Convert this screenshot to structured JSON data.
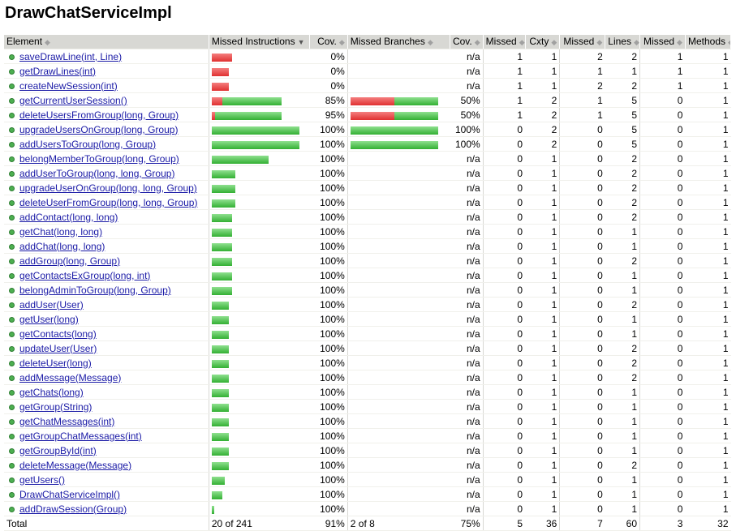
{
  "title": "DrawChatServiceImpl",
  "headers": {
    "element": "Element",
    "missed_instructions": "Missed Instructions",
    "cov1": "Cov.",
    "missed_branches": "Missed Branches",
    "cov2": "Cov.",
    "missed_cxty": "Missed",
    "cxty": "Cxty",
    "missed_lines": "Missed",
    "lines": "Lines",
    "missed_methods": "Missed",
    "methods": "Methods"
  },
  "rows": [
    {
      "name": "saveDrawLine(int, Line)",
      "instr_missed_frac": 1.0,
      "instr_total_frac": 0.23,
      "instr_cov": "0%",
      "br_missed_frac": null,
      "br_total_frac": 0,
      "br_cov": "n/a",
      "cxty_missed": "1",
      "cxty": "1",
      "lines_missed": "2",
      "lines": "2",
      "meth_missed": "1",
      "meth": "1"
    },
    {
      "name": "getDrawLines(int)",
      "instr_missed_frac": 1.0,
      "instr_total_frac": 0.19,
      "instr_cov": "0%",
      "br_missed_frac": null,
      "br_total_frac": 0,
      "br_cov": "n/a",
      "cxty_missed": "1",
      "cxty": "1",
      "lines_missed": "1",
      "lines": "1",
      "meth_missed": "1",
      "meth": "1"
    },
    {
      "name": "createNewSession(int)",
      "instr_missed_frac": 1.0,
      "instr_total_frac": 0.19,
      "instr_cov": "0%",
      "br_missed_frac": null,
      "br_total_frac": 0,
      "br_cov": "n/a",
      "cxty_missed": "1",
      "cxty": "1",
      "lines_missed": "2",
      "lines": "2",
      "meth_missed": "1",
      "meth": "1"
    },
    {
      "name": "getCurrentUserSession()",
      "instr_missed_frac": 0.15,
      "instr_total_frac": 0.8,
      "instr_cov": "85%",
      "br_missed_frac": 0.5,
      "br_total_frac": 1.0,
      "br_cov": "50%",
      "cxty_missed": "1",
      "cxty": "2",
      "lines_missed": "1",
      "lines": "5",
      "meth_missed": "0",
      "meth": "1"
    },
    {
      "name": "deleteUsersFromGroup(long, Group)",
      "instr_missed_frac": 0.05,
      "instr_total_frac": 0.8,
      "instr_cov": "95%",
      "br_missed_frac": 0.5,
      "br_total_frac": 1.0,
      "br_cov": "50%",
      "cxty_missed": "1",
      "cxty": "2",
      "lines_missed": "1",
      "lines": "5",
      "meth_missed": "0",
      "meth": "1"
    },
    {
      "name": "upgradeUsersOnGroup(long, Group)",
      "instr_missed_frac": 0,
      "instr_total_frac": 1.0,
      "instr_cov": "100%",
      "br_missed_frac": 0,
      "br_total_frac": 1.0,
      "br_cov": "100%",
      "cxty_missed": "0",
      "cxty": "2",
      "lines_missed": "0",
      "lines": "5",
      "meth_missed": "0",
      "meth": "1"
    },
    {
      "name": "addUsersToGroup(long, Group)",
      "instr_missed_frac": 0,
      "instr_total_frac": 1.0,
      "instr_cov": "100%",
      "br_missed_frac": 0,
      "br_total_frac": 1.0,
      "br_cov": "100%",
      "cxty_missed": "0",
      "cxty": "2",
      "lines_missed": "0",
      "lines": "5",
      "meth_missed": "0",
      "meth": "1"
    },
    {
      "name": "belongMemberToGroup(long, Group)",
      "instr_missed_frac": 0,
      "instr_total_frac": 0.65,
      "instr_cov": "100%",
      "br_missed_frac": null,
      "br_total_frac": 0,
      "br_cov": "n/a",
      "cxty_missed": "0",
      "cxty": "1",
      "lines_missed": "0",
      "lines": "2",
      "meth_missed": "0",
      "meth": "1"
    },
    {
      "name": "addUserToGroup(long, long, Group)",
      "instr_missed_frac": 0,
      "instr_total_frac": 0.27,
      "instr_cov": "100%",
      "br_missed_frac": null,
      "br_total_frac": 0,
      "br_cov": "n/a",
      "cxty_missed": "0",
      "cxty": "1",
      "lines_missed": "0",
      "lines": "2",
      "meth_missed": "0",
      "meth": "1"
    },
    {
      "name": "upgradeUserOnGroup(long, long, Group)",
      "instr_missed_frac": 0,
      "instr_total_frac": 0.27,
      "instr_cov": "100%",
      "br_missed_frac": null,
      "br_total_frac": 0,
      "br_cov": "n/a",
      "cxty_missed": "0",
      "cxty": "1",
      "lines_missed": "0",
      "lines": "2",
      "meth_missed": "0",
      "meth": "1"
    },
    {
      "name": "deleteUserFromGroup(long, long, Group)",
      "instr_missed_frac": 0,
      "instr_total_frac": 0.27,
      "instr_cov": "100%",
      "br_missed_frac": null,
      "br_total_frac": 0,
      "br_cov": "n/a",
      "cxty_missed": "0",
      "cxty": "1",
      "lines_missed": "0",
      "lines": "2",
      "meth_missed": "0",
      "meth": "1"
    },
    {
      "name": "addContact(long, long)",
      "instr_missed_frac": 0,
      "instr_total_frac": 0.23,
      "instr_cov": "100%",
      "br_missed_frac": null,
      "br_total_frac": 0,
      "br_cov": "n/a",
      "cxty_missed": "0",
      "cxty": "1",
      "lines_missed": "0",
      "lines": "2",
      "meth_missed": "0",
      "meth": "1"
    },
    {
      "name": "getChat(long, long)",
      "instr_missed_frac": 0,
      "instr_total_frac": 0.23,
      "instr_cov": "100%",
      "br_missed_frac": null,
      "br_total_frac": 0,
      "br_cov": "n/a",
      "cxty_missed": "0",
      "cxty": "1",
      "lines_missed": "0",
      "lines": "1",
      "meth_missed": "0",
      "meth": "1"
    },
    {
      "name": "addChat(long, long)",
      "instr_missed_frac": 0,
      "instr_total_frac": 0.23,
      "instr_cov": "100%",
      "br_missed_frac": null,
      "br_total_frac": 0,
      "br_cov": "n/a",
      "cxty_missed": "0",
      "cxty": "1",
      "lines_missed": "0",
      "lines": "1",
      "meth_missed": "0",
      "meth": "1"
    },
    {
      "name": "addGroup(long, Group)",
      "instr_missed_frac": 0,
      "instr_total_frac": 0.23,
      "instr_cov": "100%",
      "br_missed_frac": null,
      "br_total_frac": 0,
      "br_cov": "n/a",
      "cxty_missed": "0",
      "cxty": "1",
      "lines_missed": "0",
      "lines": "2",
      "meth_missed": "0",
      "meth": "1"
    },
    {
      "name": "getContactsExGroup(long, int)",
      "instr_missed_frac": 0,
      "instr_total_frac": 0.23,
      "instr_cov": "100%",
      "br_missed_frac": null,
      "br_total_frac": 0,
      "br_cov": "n/a",
      "cxty_missed": "0",
      "cxty": "1",
      "lines_missed": "0",
      "lines": "1",
      "meth_missed": "0",
      "meth": "1"
    },
    {
      "name": "belongAdminToGroup(long, Group)",
      "instr_missed_frac": 0,
      "instr_total_frac": 0.23,
      "instr_cov": "100%",
      "br_missed_frac": null,
      "br_total_frac": 0,
      "br_cov": "n/a",
      "cxty_missed": "0",
      "cxty": "1",
      "lines_missed": "0",
      "lines": "1",
      "meth_missed": "0",
      "meth": "1"
    },
    {
      "name": "addUser(User)",
      "instr_missed_frac": 0,
      "instr_total_frac": 0.19,
      "instr_cov": "100%",
      "br_missed_frac": null,
      "br_total_frac": 0,
      "br_cov": "n/a",
      "cxty_missed": "0",
      "cxty": "1",
      "lines_missed": "0",
      "lines": "2",
      "meth_missed": "0",
      "meth": "1"
    },
    {
      "name": "getUser(long)",
      "instr_missed_frac": 0,
      "instr_total_frac": 0.19,
      "instr_cov": "100%",
      "br_missed_frac": null,
      "br_total_frac": 0,
      "br_cov": "n/a",
      "cxty_missed": "0",
      "cxty": "1",
      "lines_missed": "0",
      "lines": "1",
      "meth_missed": "0",
      "meth": "1"
    },
    {
      "name": "getContacts(long)",
      "instr_missed_frac": 0,
      "instr_total_frac": 0.19,
      "instr_cov": "100%",
      "br_missed_frac": null,
      "br_total_frac": 0,
      "br_cov": "n/a",
      "cxty_missed": "0",
      "cxty": "1",
      "lines_missed": "0",
      "lines": "1",
      "meth_missed": "0",
      "meth": "1"
    },
    {
      "name": "updateUser(User)",
      "instr_missed_frac": 0,
      "instr_total_frac": 0.19,
      "instr_cov": "100%",
      "br_missed_frac": null,
      "br_total_frac": 0,
      "br_cov": "n/a",
      "cxty_missed": "0",
      "cxty": "1",
      "lines_missed": "0",
      "lines": "2",
      "meth_missed": "0",
      "meth": "1"
    },
    {
      "name": "deleteUser(long)",
      "instr_missed_frac": 0,
      "instr_total_frac": 0.19,
      "instr_cov": "100%",
      "br_missed_frac": null,
      "br_total_frac": 0,
      "br_cov": "n/a",
      "cxty_missed": "0",
      "cxty": "1",
      "lines_missed": "0",
      "lines": "2",
      "meth_missed": "0",
      "meth": "1"
    },
    {
      "name": "addMessage(Message)",
      "instr_missed_frac": 0,
      "instr_total_frac": 0.19,
      "instr_cov": "100%",
      "br_missed_frac": null,
      "br_total_frac": 0,
      "br_cov": "n/a",
      "cxty_missed": "0",
      "cxty": "1",
      "lines_missed": "0",
      "lines": "2",
      "meth_missed": "0",
      "meth": "1"
    },
    {
      "name": "getChats(long)",
      "instr_missed_frac": 0,
      "instr_total_frac": 0.19,
      "instr_cov": "100%",
      "br_missed_frac": null,
      "br_total_frac": 0,
      "br_cov": "n/a",
      "cxty_missed": "0",
      "cxty": "1",
      "lines_missed": "0",
      "lines": "1",
      "meth_missed": "0",
      "meth": "1"
    },
    {
      "name": "getGroup(String)",
      "instr_missed_frac": 0,
      "instr_total_frac": 0.19,
      "instr_cov": "100%",
      "br_missed_frac": null,
      "br_total_frac": 0,
      "br_cov": "n/a",
      "cxty_missed": "0",
      "cxty": "1",
      "lines_missed": "0",
      "lines": "1",
      "meth_missed": "0",
      "meth": "1"
    },
    {
      "name": "getChatMessages(int)",
      "instr_missed_frac": 0,
      "instr_total_frac": 0.19,
      "instr_cov": "100%",
      "br_missed_frac": null,
      "br_total_frac": 0,
      "br_cov": "n/a",
      "cxty_missed": "0",
      "cxty": "1",
      "lines_missed": "0",
      "lines": "1",
      "meth_missed": "0",
      "meth": "1"
    },
    {
      "name": "getGroupChatMessages(int)",
      "instr_missed_frac": 0,
      "instr_total_frac": 0.19,
      "instr_cov": "100%",
      "br_missed_frac": null,
      "br_total_frac": 0,
      "br_cov": "n/a",
      "cxty_missed": "0",
      "cxty": "1",
      "lines_missed": "0",
      "lines": "1",
      "meth_missed": "0",
      "meth": "1"
    },
    {
      "name": "getGroupById(int)",
      "instr_missed_frac": 0,
      "instr_total_frac": 0.19,
      "instr_cov": "100%",
      "br_missed_frac": null,
      "br_total_frac": 0,
      "br_cov": "n/a",
      "cxty_missed": "0",
      "cxty": "1",
      "lines_missed": "0",
      "lines": "1",
      "meth_missed": "0",
      "meth": "1"
    },
    {
      "name": "deleteMessage(Message)",
      "instr_missed_frac": 0,
      "instr_total_frac": 0.19,
      "instr_cov": "100%",
      "br_missed_frac": null,
      "br_total_frac": 0,
      "br_cov": "n/a",
      "cxty_missed": "0",
      "cxty": "1",
      "lines_missed": "0",
      "lines": "2",
      "meth_missed": "0",
      "meth": "1"
    },
    {
      "name": "getUsers()",
      "instr_missed_frac": 0,
      "instr_total_frac": 0.15,
      "instr_cov": "100%",
      "br_missed_frac": null,
      "br_total_frac": 0,
      "br_cov": "n/a",
      "cxty_missed": "0",
      "cxty": "1",
      "lines_missed": "0",
      "lines": "1",
      "meth_missed": "0",
      "meth": "1"
    },
    {
      "name": "DrawChatServiceImpl()",
      "instr_missed_frac": 0,
      "instr_total_frac": 0.12,
      "instr_cov": "100%",
      "br_missed_frac": null,
      "br_total_frac": 0,
      "br_cov": "n/a",
      "cxty_missed": "0",
      "cxty": "1",
      "lines_missed": "0",
      "lines": "1",
      "meth_missed": "0",
      "meth": "1"
    },
    {
      "name": "addDrawSession(Group)",
      "instr_missed_frac": 0,
      "instr_total_frac": 0.03,
      "instr_cov": "100%",
      "br_missed_frac": null,
      "br_total_frac": 0,
      "br_cov": "n/a",
      "cxty_missed": "0",
      "cxty": "1",
      "lines_missed": "0",
      "lines": "1",
      "meth_missed": "0",
      "meth": "1"
    }
  ],
  "totals": {
    "label": "Total",
    "instr": "20 of 241",
    "instr_cov": "91%",
    "br": "2 of 8",
    "br_cov": "75%",
    "cxty_missed": "5",
    "cxty": "36",
    "lines_missed": "7",
    "lines": "60",
    "meth_missed": "3",
    "meth": "32"
  },
  "colors": {
    "missed": "#e03030",
    "covered": "#33b033",
    "header_bg": "#d8d8d4",
    "link": "#1a1aa6"
  }
}
